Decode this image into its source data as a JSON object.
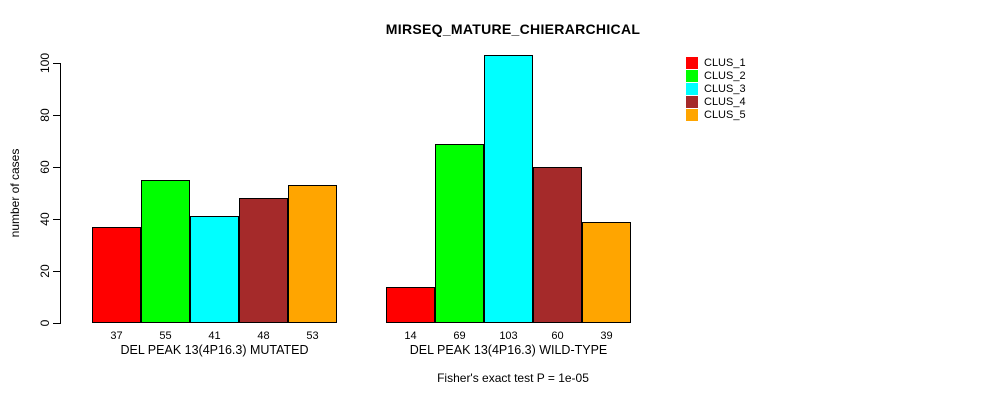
{
  "chart_data": {
    "type": "bar",
    "title": "MIRSEQ_MATURE_CHIERARCHICAL",
    "ylabel": "number of cases",
    "xlabel": "",
    "ylim": [
      0,
      100
    ],
    "yticks": [
      0,
      20,
      40,
      60,
      80,
      100
    ],
    "grid": false,
    "legend_position": "right",
    "categories": [
      "DEL PEAK 13(4P16.3) MUTATED",
      "DEL PEAK 13(4P16.3) WILD-TYPE"
    ],
    "series": [
      {
        "name": "CLUS_1",
        "color": "#FF0000",
        "values": [
          37,
          14
        ]
      },
      {
        "name": "CLUS_2",
        "color": "#00FF00",
        "values": [
          55,
          69
        ]
      },
      {
        "name": "CLUS_3",
        "color": "#00FFFF",
        "values": [
          41,
          103
        ]
      },
      {
        "name": "CLUS_4",
        "color": "#A52A2A",
        "values": [
          48,
          60
        ]
      },
      {
        "name": "CLUS_5",
        "color": "#FFA500",
        "values": [
          53,
          39
        ]
      }
    ],
    "bar_value_labels": [
      [
        37,
        55,
        41,
        48,
        53
      ],
      [
        14,
        69,
        103,
        60,
        39
      ]
    ],
    "annotation": "Fisher's exact test P = 1e-05"
  }
}
